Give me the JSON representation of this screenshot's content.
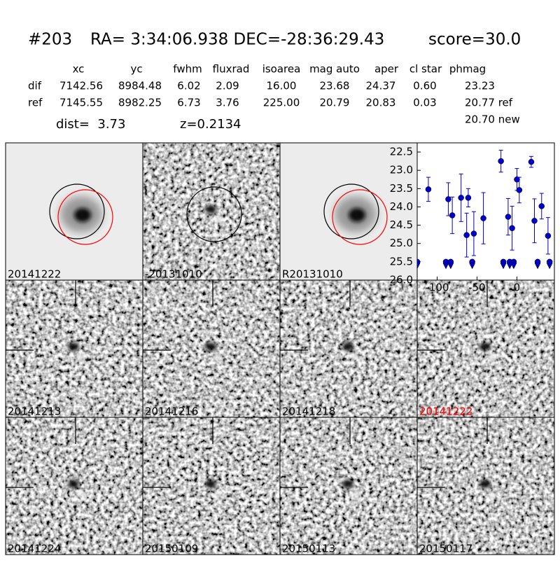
{
  "header": {
    "id": "#203",
    "coords": "RA= 3:34:06.938 DEC=-28:36:29.43",
    "score": "score=30.0"
  },
  "table": {
    "columns": [
      "xc",
      "yc",
      "fwhm",
      "fluxrad",
      "isoarea",
      "mag auto",
      "aper",
      "cl star",
      "phmag"
    ],
    "rows": [
      [
        "dif",
        "7142.56",
        "8984.48",
        "6.02",
        "2.09",
        "16.00",
        "23.68",
        "24.37",
        "0.60",
        "23.23"
      ],
      [
        "ref",
        "7145.55",
        "8982.25",
        "6.73",
        "3.76",
        "225.00",
        "20.79",
        "20.83",
        "0.03",
        "20.77 ref"
      ]
    ],
    "extra": "20.70 new"
  },
  "dist": "dist=  3.73",
  "z": "z=0.2134",
  "stamps": [
    {
      "label": "20141222",
      "label_color": "#000000"
    },
    {
      "label": "-20131010",
      "label_color": "#000000"
    },
    {
      "label": "R20131010",
      "label_color": "#000000"
    },
    {
      "label": "20141213",
      "label_color": "#000000"
    },
    {
      "label": "20141216",
      "label_color": "#000000"
    },
    {
      "label": "20141218",
      "label_color": "#000000"
    },
    {
      "label": "20141222",
      "label_color": "#ff0000"
    },
    {
      "label": "20141224",
      "label_color": "#000000"
    },
    {
      "label": "20150109",
      "label_color": "#000000"
    },
    {
      "label": "20150113",
      "label_color": "#000000"
    },
    {
      "label": "20150117",
      "label_color": "#000000"
    }
  ],
  "chart_data": {
    "type": "scatter",
    "y_inverted": true,
    "color": "#0000cc",
    "xlim": [
      -125,
      47
    ],
    "xticks": [
      -100,
      -50,
      0
    ],
    "ylim": [
      22.25,
      26.0
    ],
    "yticks": [
      22.5,
      {
        "value": 23.0,
        "label": "23.0"
      },
      23.5,
      {
        "value": 24.0,
        "label": "24.0"
      },
      24.5,
      {
        "value": 25.0,
        "label": "25.0"
      },
      25.5,
      {
        "value": 26.0,
        "label": "26.0"
      }
    ],
    "x": [
      -111,
      -86,
      -81,
      -70,
      -63,
      -61,
      -54,
      -42,
      -20,
      -11,
      -6,
      0,
      3,
      18,
      22,
      31,
      39
    ],
    "values": [
      23.52,
      23.79,
      24.23,
      23.75,
      24.77,
      23.75,
      24.73,
      24.31,
      22.75,
      24.27,
      24.58,
      23.25,
      23.54,
      22.77,
      24.38,
      23.98,
      24.79
    ],
    "errors": [
      0.33,
      0.45,
      0.5,
      0.65,
      0.6,
      0.25,
      0.6,
      0.7,
      0.3,
      0.5,
      0.6,
      0.3,
      0.35,
      0.15,
      0.6,
      0.35,
      0.5
    ],
    "limits_x": [
      -125,
      -89,
      -83,
      -56,
      -17,
      -9,
      -4,
      26,
      41
    ],
    "limits": [
      25.5,
      25.5,
      25.5,
      25.5,
      25.5,
      25.5,
      25.5,
      25.5,
      25.5
    ]
  }
}
